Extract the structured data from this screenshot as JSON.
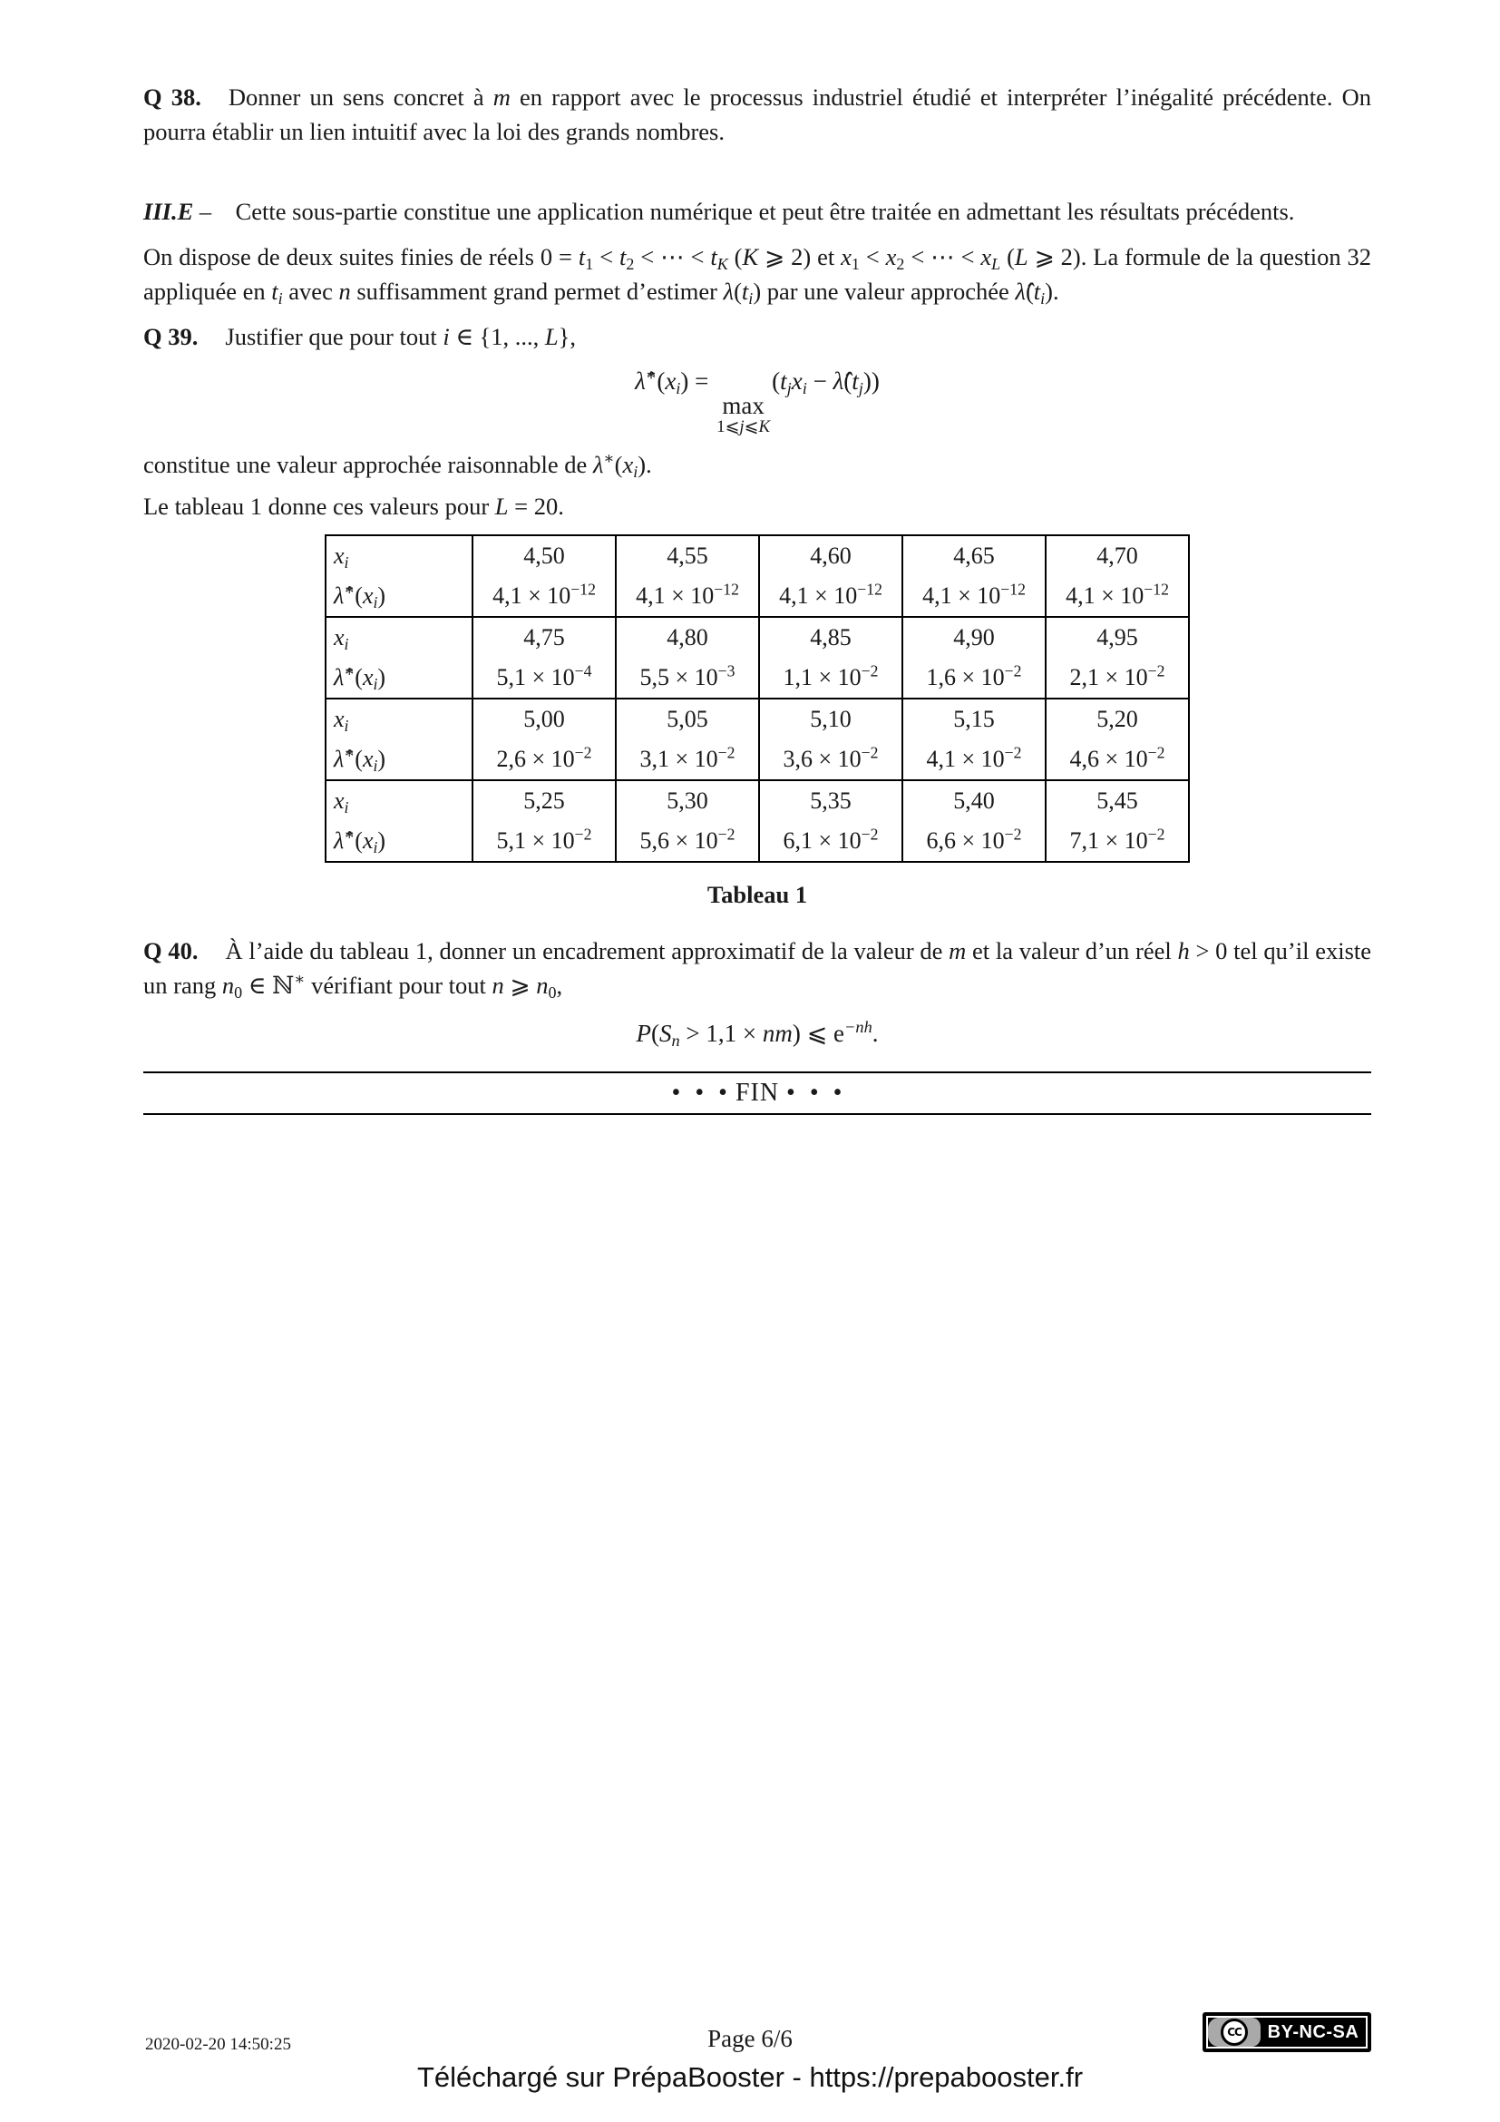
{
  "colors": {
    "page_bg": "#ffffff",
    "ink": "#1a1a1a",
    "badge_bg": "#000000",
    "badge_gray": "#a9a9a9"
  },
  "doc": {
    "q38": {
      "runs": [
        {
          "t": "Q 38.",
          "v": "q"
        },
        {
          "t": "Donner un sens concret à ",
          "v": "n"
        },
        {
          "t": "m",
          "v": "i"
        },
        {
          "t": " en rapport avec le processus industriel étudié et interpréter l’inégalité précédente. On pourra établir un lien intuitif avec la loi des grands nombres.",
          "v": "n"
        }
      ]
    },
    "section_e": {
      "runs": [
        {
          "t": "III.E",
          "v": "bi"
        },
        {
          "t": " –  Cette sous-partie constitue une application numérique et peut être traitée en admettant les résultats précédents.",
          "v": "n"
        }
      ]
    },
    "intro": {
      "runs": [
        {
          "t": "On dispose de deux suites finies de réels 0 = ",
          "v": "n"
        },
        {
          "t": "t",
          "v": "i"
        },
        {
          "t": "1",
          "v": "sub"
        },
        {
          "t": " < ",
          "v": "n"
        },
        {
          "t": "t",
          "v": "i"
        },
        {
          "t": "2",
          "v": "sub"
        },
        {
          "t": " < ⋯ < ",
          "v": "n"
        },
        {
          "t": "t",
          "v": "i"
        },
        {
          "t": "K",
          "v": "isub"
        },
        {
          "t": " (",
          "v": "n"
        },
        {
          "t": "K",
          "v": "i"
        },
        {
          "t": " ⩾ 2) et ",
          "v": "n"
        },
        {
          "t": "x",
          "v": "i"
        },
        {
          "t": "1",
          "v": "sub"
        },
        {
          "t": " < ",
          "v": "n"
        },
        {
          "t": "x",
          "v": "i"
        },
        {
          "t": "2",
          "v": "sub"
        },
        {
          "t": " < ⋯ < ",
          "v": "n"
        },
        {
          "t": "x",
          "v": "i"
        },
        {
          "t": "L",
          "v": "isub"
        },
        {
          "t": " (",
          "v": "n"
        },
        {
          "t": "L",
          "v": "i"
        },
        {
          "t": " ⩾ 2). La formule de la question 32 appliquée en ",
          "v": "n"
        },
        {
          "t": "t",
          "v": "i"
        },
        {
          "t": "i",
          "v": "isub"
        },
        {
          "t": " avec ",
          "v": "n"
        },
        {
          "t": "n",
          "v": "i"
        },
        {
          "t": " suffisamment grand permet d’estimer ",
          "v": "n"
        },
        {
          "t": "λ",
          "v": "i"
        },
        {
          "t": "(",
          "v": "n"
        },
        {
          "t": "t",
          "v": "i"
        },
        {
          "t": "i",
          "v": "isub"
        },
        {
          "t": ") par une valeur approchée ",
          "v": "n"
        },
        {
          "t": "λ̂",
          "v": "i"
        },
        {
          "t": "(",
          "v": "n"
        },
        {
          "t": "t",
          "v": "i"
        },
        {
          "t": "i",
          "v": "isub"
        },
        {
          "t": ").",
          "v": "n"
        }
      ]
    },
    "q39": {
      "runs": [
        {
          "t": "Q 39.",
          "v": "q"
        },
        {
          "t": "Justifier que pour tout ",
          "v": "n"
        },
        {
          "t": "i",
          "v": "i"
        },
        {
          "t": " ∈ {1, ..., ",
          "v": "n"
        },
        {
          "t": "L",
          "v": "i"
        },
        {
          "t": "},",
          "v": "n"
        }
      ]
    },
    "q39_formula": {
      "left": [
        {
          "t": "λ̂",
          "v": "i"
        },
        {
          "t": "∗",
          "v": "sup"
        },
        {
          "t": "(",
          "v": "n"
        },
        {
          "t": "x",
          "v": "i"
        },
        {
          "t": "i",
          "v": "isub"
        },
        {
          "t": ") = ",
          "v": "n"
        }
      ],
      "op": "max",
      "under": [
        {
          "t": "1⩽",
          "v": "n"
        },
        {
          "t": "j",
          "v": "i"
        },
        {
          "t": "⩽",
          "v": "n"
        },
        {
          "t": "K",
          "v": "i"
        }
      ],
      "right": [
        {
          "t": "(",
          "v": "n"
        },
        {
          "t": "t",
          "v": "i"
        },
        {
          "t": "j",
          "v": "isub"
        },
        {
          "t": "x",
          "v": "i"
        },
        {
          "t": "i",
          "v": "isub"
        },
        {
          "t": " − ",
          "v": "n"
        },
        {
          "t": "λ̂",
          "v": "i"
        },
        {
          "t": "(",
          "v": "n"
        },
        {
          "t": "t",
          "v": "i"
        },
        {
          "t": "j",
          "v": "isub"
        },
        {
          "t": "))",
          "v": "n"
        }
      ]
    },
    "after_q39": {
      "runs": [
        {
          "t": "constitue une valeur approchée raisonnable de ",
          "v": "n"
        },
        {
          "t": "λ",
          "v": "i"
        },
        {
          "t": "∗",
          "v": "sup"
        },
        {
          "t": "(",
          "v": "n"
        },
        {
          "t": "x",
          "v": "i"
        },
        {
          "t": "i",
          "v": "isub"
        },
        {
          "t": ").",
          "v": "n"
        }
      ]
    },
    "table_intro": {
      "runs": [
        {
          "t": "Le tableau 1 donne ces valeurs pour ",
          "v": "n"
        },
        {
          "t": "L",
          "v": "i"
        },
        {
          "t": " = 20.",
          "v": "n"
        }
      ]
    },
    "table1": {
      "row_label_xi": [
        {
          "t": "x",
          "v": "i"
        },
        {
          "t": "i",
          "v": "isub"
        }
      ],
      "row_label_lambda": [
        {
          "t": "λ̂",
          "v": "i"
        },
        {
          "t": "∗",
          "v": "sup"
        },
        {
          "t": "(",
          "v": "n"
        },
        {
          "t": "x",
          "v": "i"
        },
        {
          "t": "i",
          "v": "isub"
        },
        {
          "t": ")",
          "v": "n"
        }
      ],
      "multiply_base": " × 10",
      "blocks": [
        {
          "xi": [
            "4,50",
            "4,55",
            "4,60",
            "4,65",
            "4,70"
          ],
          "lambda": [
            {
              "m": "4,1",
              "e": "−12"
            },
            {
              "m": "4,1",
              "e": "−12"
            },
            {
              "m": "4,1",
              "e": "−12"
            },
            {
              "m": "4,1",
              "e": "−12"
            },
            {
              "m": "4,1",
              "e": "−12"
            }
          ]
        },
        {
          "xi": [
            "4,75",
            "4,80",
            "4,85",
            "4,90",
            "4,95"
          ],
          "lambda": [
            {
              "m": "5,1",
              "e": "−4"
            },
            {
              "m": "5,5",
              "e": "−3"
            },
            {
              "m": "1,1",
              "e": "−2"
            },
            {
              "m": "1,6",
              "e": "−2"
            },
            {
              "m": "2,1",
              "e": "−2"
            }
          ]
        },
        {
          "xi": [
            "5,00",
            "5,05",
            "5,10",
            "5,15",
            "5,20"
          ],
          "lambda": [
            {
              "m": "2,6",
              "e": "−2"
            },
            {
              "m": "3,1",
              "e": "−2"
            },
            {
              "m": "3,6",
              "e": "−2"
            },
            {
              "m": "4,1",
              "e": "−2"
            },
            {
              "m": "4,6",
              "e": "−2"
            }
          ]
        },
        {
          "xi": [
            "5,25",
            "5,30",
            "5,35",
            "5,40",
            "5,45"
          ],
          "lambda": [
            {
              "m": "5,1",
              "e": "−2"
            },
            {
              "m": "5,6",
              "e": "−2"
            },
            {
              "m": "6,1",
              "e": "−2"
            },
            {
              "m": "6,6",
              "e": "−2"
            },
            {
              "m": "7,1",
              "e": "−2"
            }
          ]
        }
      ],
      "caption": "Tableau 1"
    },
    "q40": {
      "runs": [
        {
          "t": "Q 40.",
          "v": "q"
        },
        {
          "t": "À l’aide du tableau 1, donner un encadrement approximatif de la valeur de ",
          "v": "n"
        },
        {
          "t": "m",
          "v": "i"
        },
        {
          "t": " et la valeur d’un réel ",
          "v": "n"
        },
        {
          "t": "h",
          "v": "i"
        },
        {
          "t": " > 0 tel qu’il existe un rang ",
          "v": "n"
        },
        {
          "t": "n",
          "v": "i"
        },
        {
          "t": "0",
          "v": "sub"
        },
        {
          "t": " ∈ ℕ",
          "v": "n"
        },
        {
          "t": "∗",
          "v": "sup"
        },
        {
          "t": " vérifiant pour tout ",
          "v": "n"
        },
        {
          "t": "n",
          "v": "i"
        },
        {
          "t": " ⩾ ",
          "v": "n"
        },
        {
          "t": "n",
          "v": "i"
        },
        {
          "t": "0",
          "v": "sub"
        },
        {
          "t": ",",
          "v": "n"
        }
      ]
    },
    "q40_formula": {
      "runs": [
        {
          "t": "P",
          "v": "i"
        },
        {
          "t": "(",
          "v": "n"
        },
        {
          "t": "S",
          "v": "i"
        },
        {
          "t": "n",
          "v": "isub"
        },
        {
          "t": " > 1,1 × ",
          "v": "n"
        },
        {
          "t": "nm",
          "v": "i"
        },
        {
          "t": ") ⩽ e",
          "v": "n"
        },
        {
          "t": "−nh",
          "v": "isup"
        },
        {
          "t": ".",
          "v": "n"
        }
      ]
    },
    "fin": {
      "text": "• • • FIN • • •"
    }
  },
  "footer": {
    "timestamp": "2020-02-20 14:50:25",
    "page_number": "Page 6/6",
    "cc_initials": "CC",
    "license_label": "BY-NC-SA",
    "download_text": "Téléchargé sur PrépaBooster - https://prepabooster.fr"
  }
}
